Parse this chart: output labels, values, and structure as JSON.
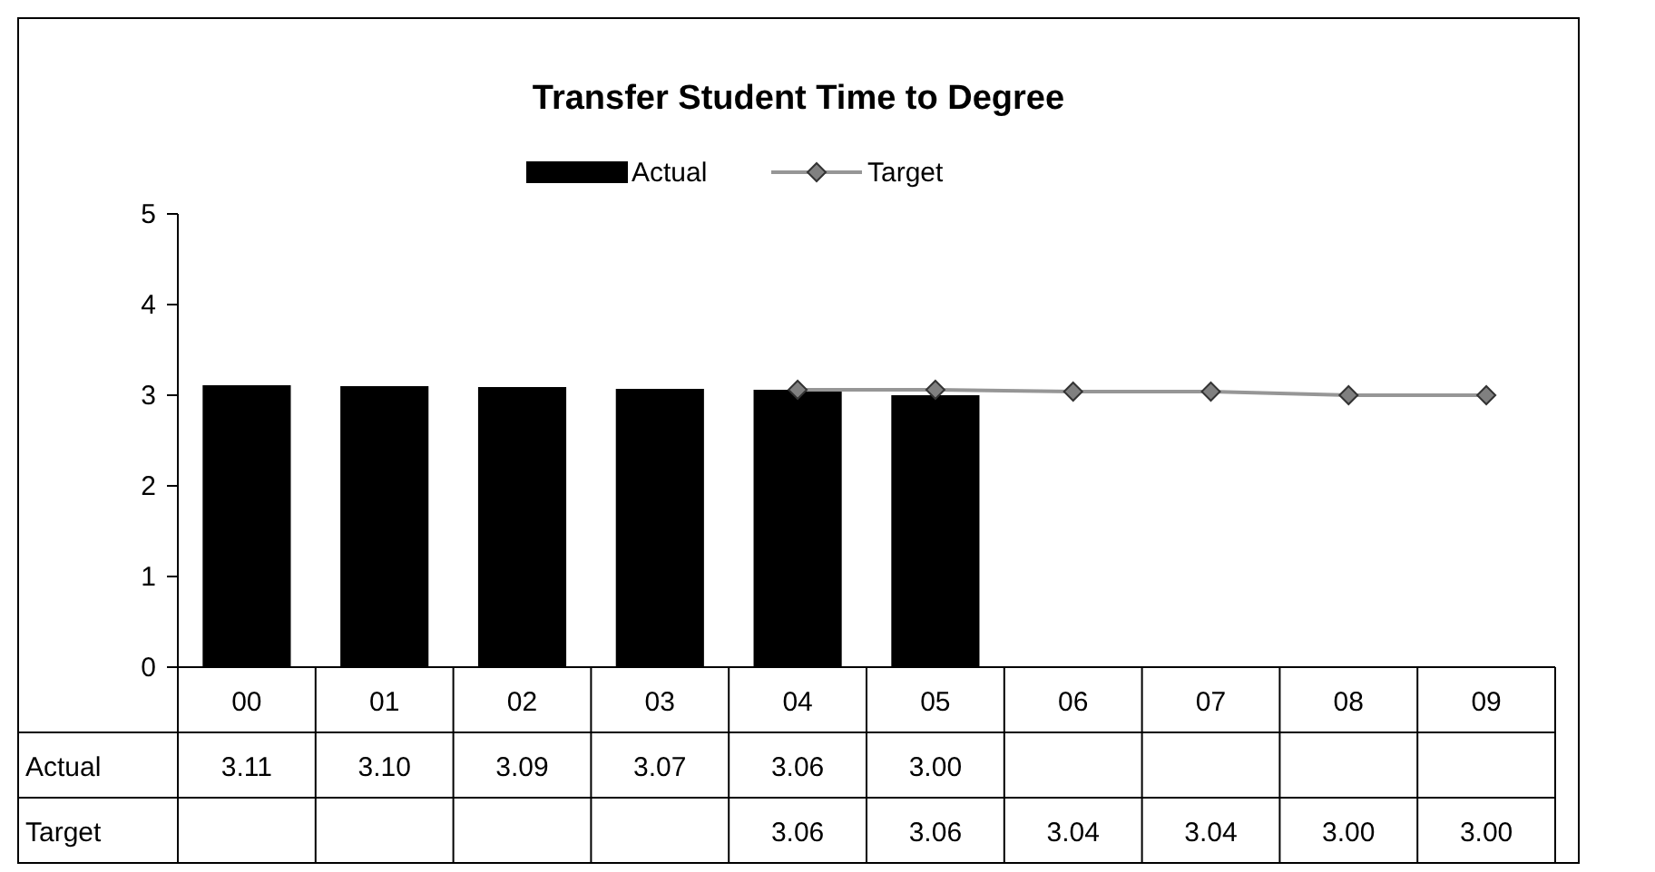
{
  "chart_data": {
    "type": "bar",
    "title": "Transfer Student Time to Degree",
    "categories": [
      "00",
      "01",
      "02",
      "03",
      "04",
      "05",
      "06",
      "07",
      "08",
      "09"
    ],
    "series": [
      {
        "name": "Actual",
        "color": "#000000",
        "values": [
          3.11,
          3.1,
          3.09,
          3.07,
          3.06,
          3.0,
          null,
          null,
          null,
          null
        ],
        "value_labels": [
          "3.11",
          "3.10",
          "3.09",
          "3.07",
          "3.06",
          "3.00",
          null,
          null,
          null,
          null
        ]
      },
      {
        "name": "Target",
        "type": "line",
        "color": "#969696",
        "marker": "diamond",
        "values": [
          null,
          null,
          null,
          null,
          3.06,
          3.06,
          3.04,
          3.04,
          3.0,
          3.0
        ],
        "value_labels": [
          null,
          null,
          null,
          null,
          "3.06",
          "3.06",
          "3.04",
          "3.04",
          "3.00",
          "3.00"
        ]
      }
    ],
    "ylim": [
      0,
      5
    ],
    "yticks": [
      0,
      1,
      2,
      3,
      4,
      5
    ],
    "legend": "top",
    "grid": false
  }
}
